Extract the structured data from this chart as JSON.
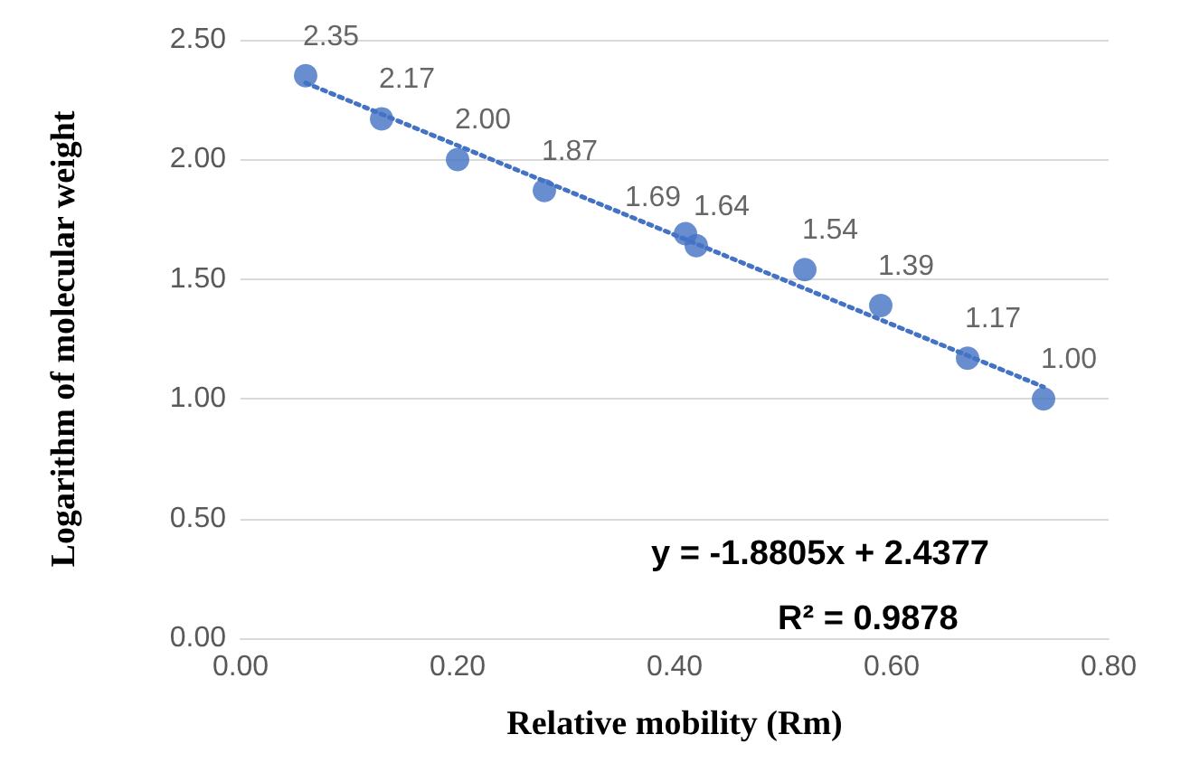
{
  "chart_data": {
    "type": "scatter",
    "xlabel": "Relative mobility (Rm)",
    "ylabel": "Logarithm of molecular weight",
    "x": [
      0.06,
      0.13,
      0.2,
      0.28,
      0.41,
      0.42,
      0.52,
      0.59,
      0.67,
      0.74
    ],
    "series": [
      {
        "color": "#4472c4",
        "values": [
          2.35,
          2.17,
          2.0,
          1.87,
          1.69,
          1.64,
          1.54,
          1.39,
          1.17,
          1.0
        ],
        "value_labels": [
          "2.35",
          "2.17",
          "2.00",
          "1.87",
          "1.69",
          "1.64",
          "1.54",
          "1.39",
          "1.17",
          "1.00"
        ]
      },
      {
        "type": "line",
        "color": "#4472c4",
        "line_style": "dotted",
        "marker": "none",
        "x": [
          0.06,
          0.74
        ],
        "values": [
          2.32,
          1.05
        ]
      }
    ],
    "marker": "circle",
    "xlim": [
      0,
      0.8
    ],
    "xticks": [
      {
        "value": 0,
        "label": "0.00"
      },
      {
        "value": 0.2,
        "label": "0.20"
      },
      {
        "value": 0.4,
        "label": "0.40"
      },
      {
        "value": 0.6,
        "label": "0.60"
      },
      {
        "value": 0.8,
        "label": "0.80"
      }
    ],
    "ylim": [
      0,
      2.5
    ],
    "yticks": [
      {
        "value": 0,
        "label": "0.00"
      },
      {
        "value": 0.5,
        "label": "0.50"
      },
      {
        "value": 1,
        "label": "1.00"
      },
      {
        "value": 1.5,
        "label": "1.50"
      },
      {
        "value": 2,
        "label": "2.00"
      },
      {
        "value": 2.5,
        "label": "2.50"
      }
    ],
    "grid": "y",
    "annotations": [
      "y = -1.8805x + 2.4377",
      "R² = 0.9878"
    ]
  }
}
